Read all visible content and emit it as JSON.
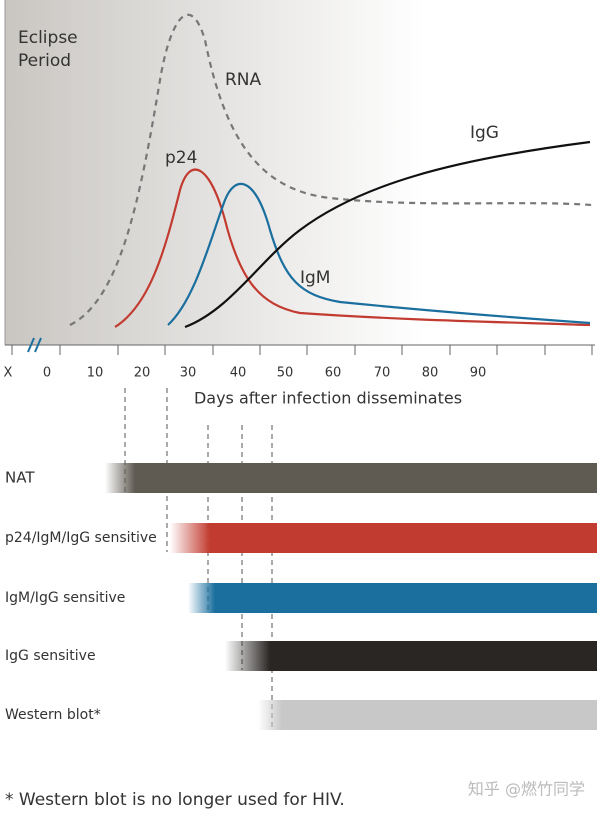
{
  "plot": {
    "eclipse": [
      "Eclipse",
      "Period"
    ],
    "curves": {
      "rna": "RNA",
      "p24": "p24",
      "igg": "IgG",
      "igm": "IgM"
    },
    "x_ticks": [
      "X",
      "0",
      "10",
      "20",
      "30",
      "40",
      "50",
      "60",
      "70",
      "80",
      "90"
    ],
    "x_axis_label": "Days after infection disseminates"
  },
  "assays": [
    "NAT",
    "p24/IgM/IgG sensitive",
    "IgM/IgG sensitive",
    "IgG sensitive",
    "Western blot*"
  ],
  "footnote": "* Western blot is no longer used for HIV.",
  "watermark": "知乎 @燃竹同学"
}
